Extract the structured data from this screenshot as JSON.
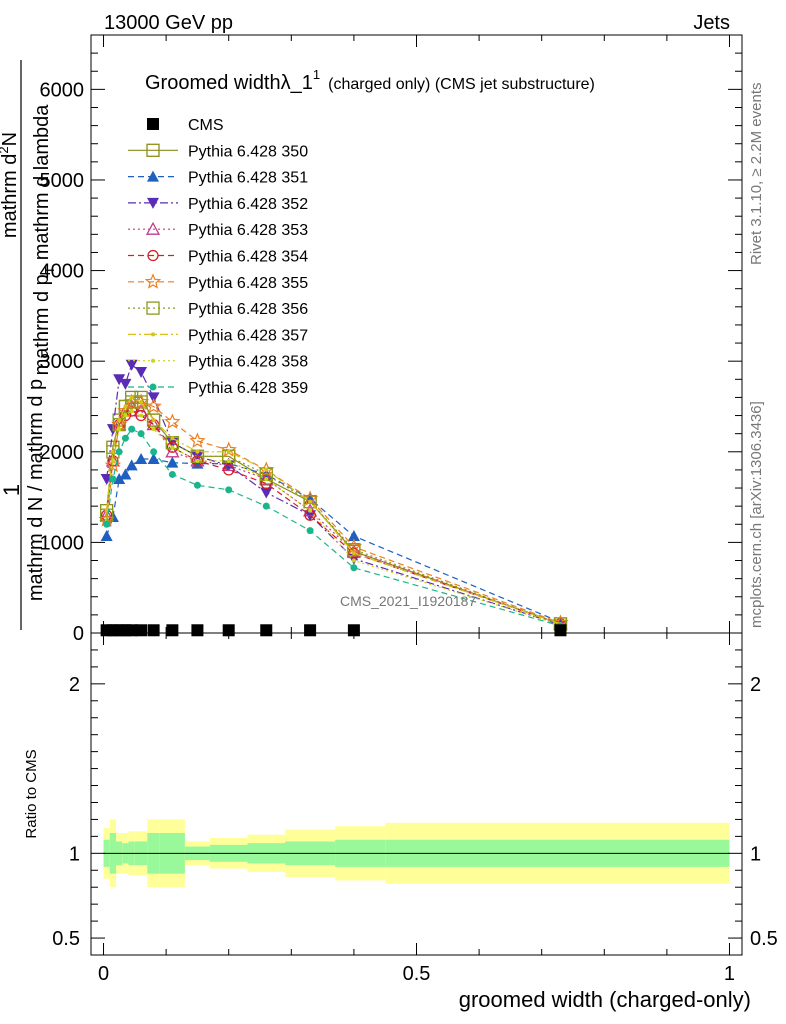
{
  "header": {
    "left": "13000 GeV pp",
    "right": "Jets"
  },
  "side_text": {
    "rivet": "Rivet 3.1.10, ≥ 2.2M events",
    "mcplots": "mcplots.cern.ch [arXiv:1306.3436]"
  },
  "chart_data": {
    "type": "line",
    "title": "Groomed widthλ_1",
    "title_sup": "1",
    "title_suffix": "(charged only) (CMS jet substructure)",
    "watermark": "CMS_2021_I1920187",
    "xlabel": "groomed width (charged-only)",
    "ylabel_num": "1",
    "ylabel_lines": [
      "mathrm d N / mathrm d p",
      "mathrm d p",
      "mathrm d lambda"
    ],
    "ylabel_top": "mathrm d",
    "ylabel_top2": "N",
    "ylabel_top_b": "mathrm d p",
    "ylabel_top_c": "mathrm d lambda",
    "ylabel_full": "mathrm d²N / mathrm d p_T mathrm d lambda",
    "ylabel_denominator": "mathrm d N / mathrm d p",
    "ratio_ylabel": "Ratio to CMS",
    "xlim": [
      -0.02,
      1.02
    ],
    "ylim_main": [
      0,
      6600
    ],
    "ylim_ratio": [
      0.4,
      2.3
    ],
    "x_ticks": [
      0,
      0.5,
      1
    ],
    "x_tick_labels": [
      "0",
      "0.5",
      "1"
    ],
    "y_ticks_main": [
      0,
      1000,
      2000,
      3000,
      4000,
      5000,
      6000
    ],
    "y_tick_labels_main": [
      "0",
      "1000",
      "2000",
      "3000",
      "4000",
      "5000",
      "6000"
    ],
    "y_ticks_ratio": [
      0.5,
      1,
      2
    ],
    "y_tick_labels_ratio": [
      "0.5",
      "1",
      "2"
    ],
    "x": [
      0.005,
      0.015,
      0.025,
      0.035,
      0.045,
      0.06,
      0.08,
      0.11,
      0.15,
      0.2,
      0.26,
      0.33,
      0.4,
      0.73
    ],
    "cms": {
      "name": "CMS",
      "values": [
        8,
        8,
        8,
        8,
        8,
        8,
        8,
        8,
        8,
        8,
        8,
        8,
        8,
        8
      ]
    },
    "series": [
      {
        "name": "Pythia 6.428 350",
        "color": "#8c8c1a",
        "dash": "",
        "marker": "square-open",
        "values": [
          1350,
          2050,
          2350,
          2500,
          2600,
          2600,
          2350,
          2100,
          1950,
          1950,
          1700,
          1450,
          900,
          100
        ]
      },
      {
        "name": "Pythia 6.428 351",
        "color": "#1f5fbf",
        "dash": "6,4",
        "marker": "triangle-up",
        "values": [
          1070,
          1280,
          1700,
          1750,
          1850,
          1920,
          1920,
          1880,
          1870,
          1870,
          1750,
          1480,
          1070,
          120
        ]
      },
      {
        "name": "Pythia 6.428 352",
        "color": "#5a2cb5",
        "dash": "8,3,2,3",
        "marker": "triangle-down",
        "values": [
          1700,
          2250,
          2800,
          2750,
          2960,
          2880,
          2600,
          2100,
          1950,
          1850,
          1550,
          1300,
          820,
          90
        ]
      },
      {
        "name": "Pythia 6.428 353",
        "color": "#c43a8c",
        "dash": "2,3",
        "marker": "triangle-up-open",
        "values": [
          1300,
          1900,
          2300,
          2450,
          2500,
          2450,
          2300,
          2000,
          1900,
          1850,
          1700,
          1350,
          900,
          100
        ]
      },
      {
        "name": "Pythia 6.428 354",
        "color": "#d42020",
        "dash": "6,4",
        "marker": "circle-open",
        "values": [
          1300,
          1900,
          2300,
          2400,
          2450,
          2400,
          2300,
          2050,
          1900,
          1800,
          1650,
          1300,
          880,
          100
        ]
      },
      {
        "name": "Pythia 6.428 355",
        "color": "#ee7f21",
        "dash": "6,4",
        "marker": "star-open",
        "values": [
          1250,
          1850,
          2300,
          2450,
          2550,
          2550,
          2500,
          2330,
          2120,
          2020,
          1800,
          1480,
          950,
          110
        ]
      },
      {
        "name": "Pythia 6.428 356",
        "color": "#8c9b1a",
        "dash": "2,3",
        "marker": "square-open",
        "values": [
          1300,
          2000,
          2300,
          2500,
          2550,
          2550,
          2350,
          2100,
          1950,
          1950,
          1750,
          1450,
          920,
          100
        ]
      },
      {
        "name": "Pythia 6.428 357",
        "color": "#d6c21a",
        "dash": "8,3,2,3",
        "marker": "dot",
        "values": [
          1350,
          2000,
          2350,
          2500,
          2600,
          2550,
          2350,
          2150,
          2000,
          2000,
          1800,
          1450,
          880,
          100
        ]
      },
      {
        "name": "Pythia 6.428 358",
        "color": "#c9d61a",
        "dash": "2,3",
        "marker": "dot",
        "values": [
          1250,
          1900,
          2250,
          2400,
          2450,
          2400,
          2250,
          2050,
          1900,
          1900,
          1700,
          1350,
          800,
          90
        ]
      },
      {
        "name": "Pythia 6.428 359",
        "color": "#1ab58c",
        "dash": "6,4",
        "marker": "circle",
        "values": [
          1200,
          1700,
          2000,
          2150,
          2250,
          2200,
          2000,
          1750,
          1630,
          1580,
          1400,
          1130,
          720,
          80
        ]
      }
    ],
    "ratio_bands": {
      "edges": [
        0,
        0.01,
        0.02,
        0.03,
        0.04,
        0.05,
        0.07,
        0.09,
        0.13,
        0.17,
        0.23,
        0.29,
        0.37,
        0.45,
        1.0
      ],
      "inner": [
        0.08,
        0.12,
        0.07,
        0.06,
        0.07,
        0.07,
        0.12,
        0.12,
        0.04,
        0.05,
        0.06,
        0.07,
        0.08,
        0.08
      ],
      "outer": [
        0.15,
        0.2,
        0.12,
        0.12,
        0.13,
        0.13,
        0.2,
        0.2,
        0.07,
        0.09,
        0.11,
        0.14,
        0.16,
        0.18
      ],
      "inner_color": "#99f899",
      "outer_color": "#ffff99"
    }
  }
}
